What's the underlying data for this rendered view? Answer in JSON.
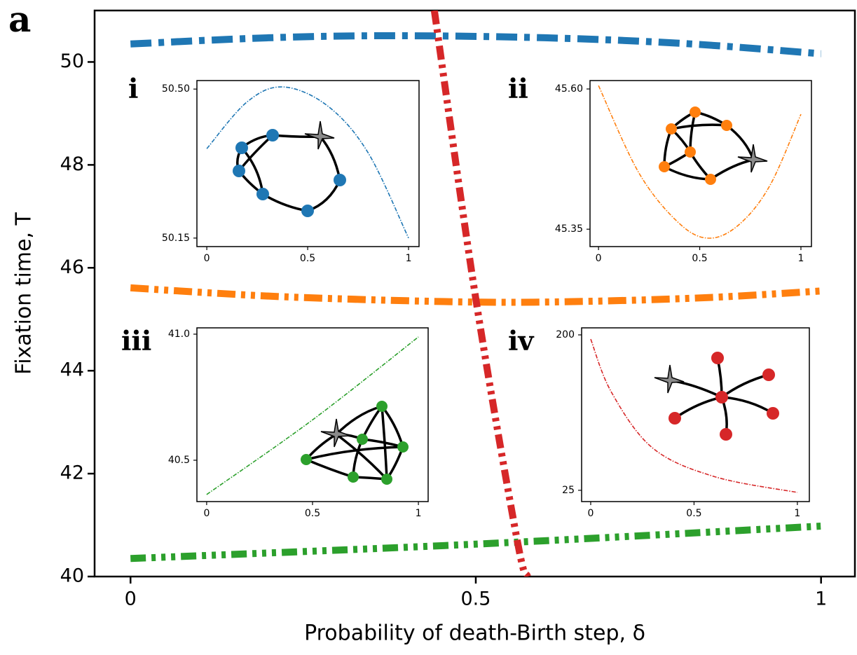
{
  "chart_data": [
    {
      "type": "line",
      "panel_label": "a",
      "xlabel": "Probability of death-Birth step, δ",
      "ylabel": "Fixation time, T",
      "xlim": [
        -0.052,
        1.049
      ],
      "ylim": [
        40,
        51
      ],
      "xticks": [
        0,
        0.5,
        1
      ],
      "yticks": [
        40,
        42,
        44,
        46,
        48,
        50
      ],
      "series": [
        {
          "color": "#1f77b4",
          "x": [
            0,
            0.2,
            0.38,
            0.6,
            0.8,
            1
          ],
          "values": [
            50.35,
            50.47,
            50.51,
            50.47,
            50.36,
            50.16
          ]
        },
        {
          "color": "#ff7f0e",
          "x": [
            0,
            0.2,
            0.4,
            0.55,
            0.7,
            0.85,
            1
          ],
          "values": [
            45.61,
            45.45,
            45.36,
            45.33,
            45.36,
            45.43,
            45.55
          ]
        },
        {
          "color": "#2ca02c",
          "x": [
            0,
            0.5,
            1
          ],
          "values": [
            40.35,
            40.63,
            40.98
          ]
        },
        {
          "color": "#d62728",
          "x": [
            0.44,
            0.5,
            0.56,
            0.575
          ],
          "values": [
            51,
            45.4,
            40.7,
            40
          ]
        }
      ]
    },
    {
      "type": "line",
      "panel_label": "i",
      "xlim": [
        -0.049,
        1.052
      ],
      "ylim": [
        50.13,
        50.52
      ],
      "xticks": [
        0,
        0.5,
        1
      ],
      "yticks": [
        {
          "value": 50.15,
          "label": "50.15"
        },
        {
          "value": 50.5,
          "label": "50.50"
        }
      ],
      "color": "#1f77b4",
      "x": [
        0,
        0.2,
        0.38,
        0.6,
        0.8,
        1
      ],
      "values": [
        50.36,
        50.47,
        50.505,
        50.46,
        50.35,
        50.15
      ]
    },
    {
      "type": "line",
      "panel_label": "ii",
      "xlim": [
        -0.042,
        1.052
      ],
      "ylim": [
        45.319,
        45.615
      ],
      "xticks": [
        0,
        0.5,
        1
      ],
      "yticks": [
        {
          "value": 45.35,
          "label": "45.35"
        },
        {
          "value": 45.6,
          "label": "45.60"
        }
      ],
      "color": "#ff7f0e",
      "x": [
        0,
        0.2,
        0.4,
        0.55,
        0.7,
        0.85,
        1
      ],
      "values": [
        45.606,
        45.45,
        45.36,
        45.334,
        45.36,
        45.43,
        45.555
      ]
    },
    {
      "type": "line",
      "panel_label": "iii",
      "xlim": [
        -0.046,
        1.046
      ],
      "ylim": [
        40.336,
        41.025
      ],
      "xticks": [
        0,
        0.5,
        1
      ],
      "yticks": [
        40.5,
        {
          "value": 41,
          "label": "41.0"
        }
      ],
      "color": "#2ca02c",
      "x": [
        0,
        0.5,
        1
      ],
      "values": [
        40.364,
        40.66,
        40.989
      ]
    },
    {
      "type": "line",
      "panel_label": "iv",
      "xlim": [
        -0.044,
        1.058
      ],
      "ylim": [
        21.5,
        219.7
      ],
      "yscale": "log",
      "xticks": [
        0,
        0.5,
        1
      ],
      "yticks": [
        25,
        200
      ],
      "color": "#d62728",
      "x": [
        0,
        0.1,
        0.3,
        0.6,
        1
      ],
      "values": [
        189,
        93,
        44,
        30,
        24.3
      ]
    }
  ]
}
